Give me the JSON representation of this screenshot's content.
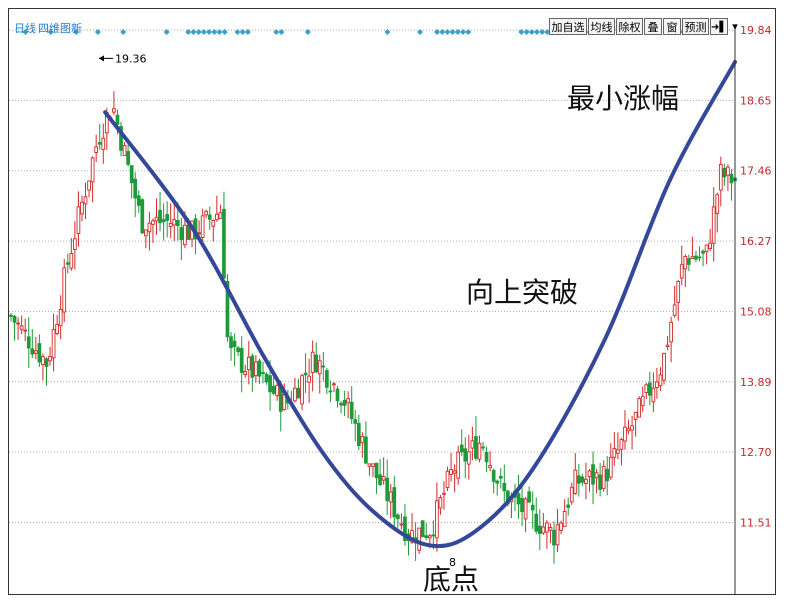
{
  "header": {
    "period_label": "日线",
    "indicator_label": "四维图新"
  },
  "toolbar": {
    "buttons": [
      "加自选",
      "均线",
      "除权",
      "叠",
      "窗",
      "预测"
    ],
    "nav_arrow": "➜▌",
    "dropdown": "▾"
  },
  "annotations": {
    "max_gain": "最小涨幅",
    "breakout": "向上突破",
    "bottom": "底点",
    "high_marker": "19.36",
    "low_marker_fragment": "8"
  },
  "colors": {
    "up": "#d62828",
    "down": "#1f9a3a",
    "curve": "#34489a",
    "axis_label": "#c62828",
    "info_dot": "#3aa0c8"
  },
  "chart_data": {
    "type": "candlestick",
    "ylim": [
      10.7,
      19.95
    ],
    "yticks": [
      "19.84",
      "18.65",
      "17.46",
      "16.27",
      "15.08",
      "13.89",
      "12.70",
      "11.51"
    ],
    "ytick_values": [
      19.84,
      18.65,
      17.46,
      16.27,
      15.08,
      13.89,
      12.7,
      11.51
    ],
    "grid": true,
    "trend_points": [
      {
        "pos": 0.13,
        "price": 18.45
      },
      {
        "pos": 0.25,
        "price": 16.5
      },
      {
        "pos": 0.35,
        "price": 14.3
      },
      {
        "pos": 0.43,
        "price": 12.7
      },
      {
        "pos": 0.5,
        "price": 11.7
      },
      {
        "pos": 0.575,
        "price": 11.13
      },
      {
        "pos": 0.64,
        "price": 11.35
      },
      {
        "pos": 0.72,
        "price": 12.4
      },
      {
        "pos": 0.82,
        "price": 14.6
      },
      {
        "pos": 0.91,
        "price": 17.3
      },
      {
        "pos": 1.0,
        "price": 19.3
      }
    ],
    "candle_path": [
      {
        "pos": 0.0,
        "price": 15.0
      },
      {
        "pos": 0.05,
        "price": 14.2
      },
      {
        "pos": 0.08,
        "price": 16.0
      },
      {
        "pos": 0.12,
        "price": 18.0
      },
      {
        "pos": 0.14,
        "price": 18.6
      },
      {
        "pos": 0.18,
        "price": 16.6
      },
      {
        "pos": 0.22,
        "price": 16.6
      },
      {
        "pos": 0.25,
        "price": 16.4
      },
      {
        "pos": 0.29,
        "price": 16.8
      },
      {
        "pos": 0.3,
        "price": 14.4
      },
      {
        "pos": 0.34,
        "price": 14.0
      },
      {
        "pos": 0.38,
        "price": 13.5
      },
      {
        "pos": 0.42,
        "price": 14.3
      },
      {
        "pos": 0.46,
        "price": 13.6
      },
      {
        "pos": 0.5,
        "price": 12.4
      },
      {
        "pos": 0.55,
        "price": 11.3
      },
      {
        "pos": 0.58,
        "price": 11.4
      },
      {
        "pos": 0.61,
        "price": 12.4
      },
      {
        "pos": 0.65,
        "price": 12.9
      },
      {
        "pos": 0.68,
        "price": 12.0
      },
      {
        "pos": 0.72,
        "price": 11.6
      },
      {
        "pos": 0.75,
        "price": 11.3
      },
      {
        "pos": 0.78,
        "price": 12.2
      },
      {
        "pos": 0.82,
        "price": 12.3
      },
      {
        "pos": 0.86,
        "price": 13.2
      },
      {
        "pos": 0.9,
        "price": 14.2
      },
      {
        "pos": 0.93,
        "price": 16.0
      },
      {
        "pos": 0.96,
        "price": 16.0
      },
      {
        "pos": 0.98,
        "price": 17.4
      },
      {
        "pos": 1.0,
        "price": 17.3
      }
    ],
    "info_dot_groups": [
      {
        "pos": 0.02,
        "count": 1
      },
      {
        "pos": 0.055,
        "count": 1
      },
      {
        "pos": 0.09,
        "count": 1
      },
      {
        "pos": 0.12,
        "count": 1
      },
      {
        "pos": 0.155,
        "count": 1
      },
      {
        "pos": 0.215,
        "count": 1
      },
      {
        "pos": 0.27,
        "count": 8
      },
      {
        "pos": 0.32,
        "count": 3
      },
      {
        "pos": 0.37,
        "count": 2
      },
      {
        "pos": 0.41,
        "count": 1
      },
      {
        "pos": 0.52,
        "count": 1
      },
      {
        "pos": 0.565,
        "count": 1
      },
      {
        "pos": 0.61,
        "count": 7
      },
      {
        "pos": 0.73,
        "count": 8
      },
      {
        "pos": 0.79,
        "count": 2
      },
      {
        "pos": 0.86,
        "count": 1
      },
      {
        "pos": 0.92,
        "count": 2
      },
      {
        "pos": 0.97,
        "count": 1
      }
    ]
  }
}
